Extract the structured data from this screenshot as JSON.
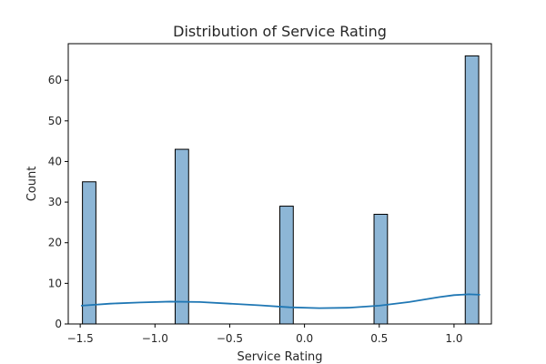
{
  "chart_data": {
    "type": "bar",
    "title": "Distribution of Service Rating",
    "xlabel": "Service Rating",
    "ylabel": "Count",
    "xlim": [
      -1.58,
      1.25
    ],
    "ylim": [
      0,
      69
    ],
    "x_ticks": [
      -1.5,
      -1.0,
      -0.5,
      0.0,
      0.5,
      1.0
    ],
    "x_tick_labels": [
      "−1.5",
      "−1.0",
      "−0.5",
      "0.0",
      "0.5",
      "1.0"
    ],
    "y_ticks": [
      0,
      10,
      20,
      30,
      40,
      50,
      60
    ],
    "y_tick_labels": [
      "0",
      "10",
      "20",
      "30",
      "40",
      "50",
      "60"
    ],
    "bars": [
      {
        "center": -1.44,
        "width": 0.09,
        "value": 35
      },
      {
        "center": -0.82,
        "width": 0.09,
        "value": 43
      },
      {
        "center": -0.12,
        "width": 0.09,
        "value": 29
      },
      {
        "center": 0.51,
        "width": 0.09,
        "value": 27
      },
      {
        "center": 1.12,
        "width": 0.09,
        "value": 66
      }
    ],
    "kde_line": {
      "x": [
        -1.49,
        -1.3,
        -1.1,
        -0.9,
        -0.7,
        -0.5,
        -0.3,
        -0.1,
        0.1,
        0.3,
        0.5,
        0.7,
        0.9,
        1.0,
        1.1,
        1.17
      ],
      "y": [
        4.5,
        5.0,
        5.3,
        5.5,
        5.4,
        5.0,
        4.6,
        4.1,
        3.9,
        4.0,
        4.5,
        5.4,
        6.6,
        7.1,
        7.3,
        7.2
      ]
    },
    "bar_fill": "#8db6d6",
    "bar_stroke": "#000000",
    "kde_color": "#1f77b4",
    "grid": false,
    "legend": false
  }
}
